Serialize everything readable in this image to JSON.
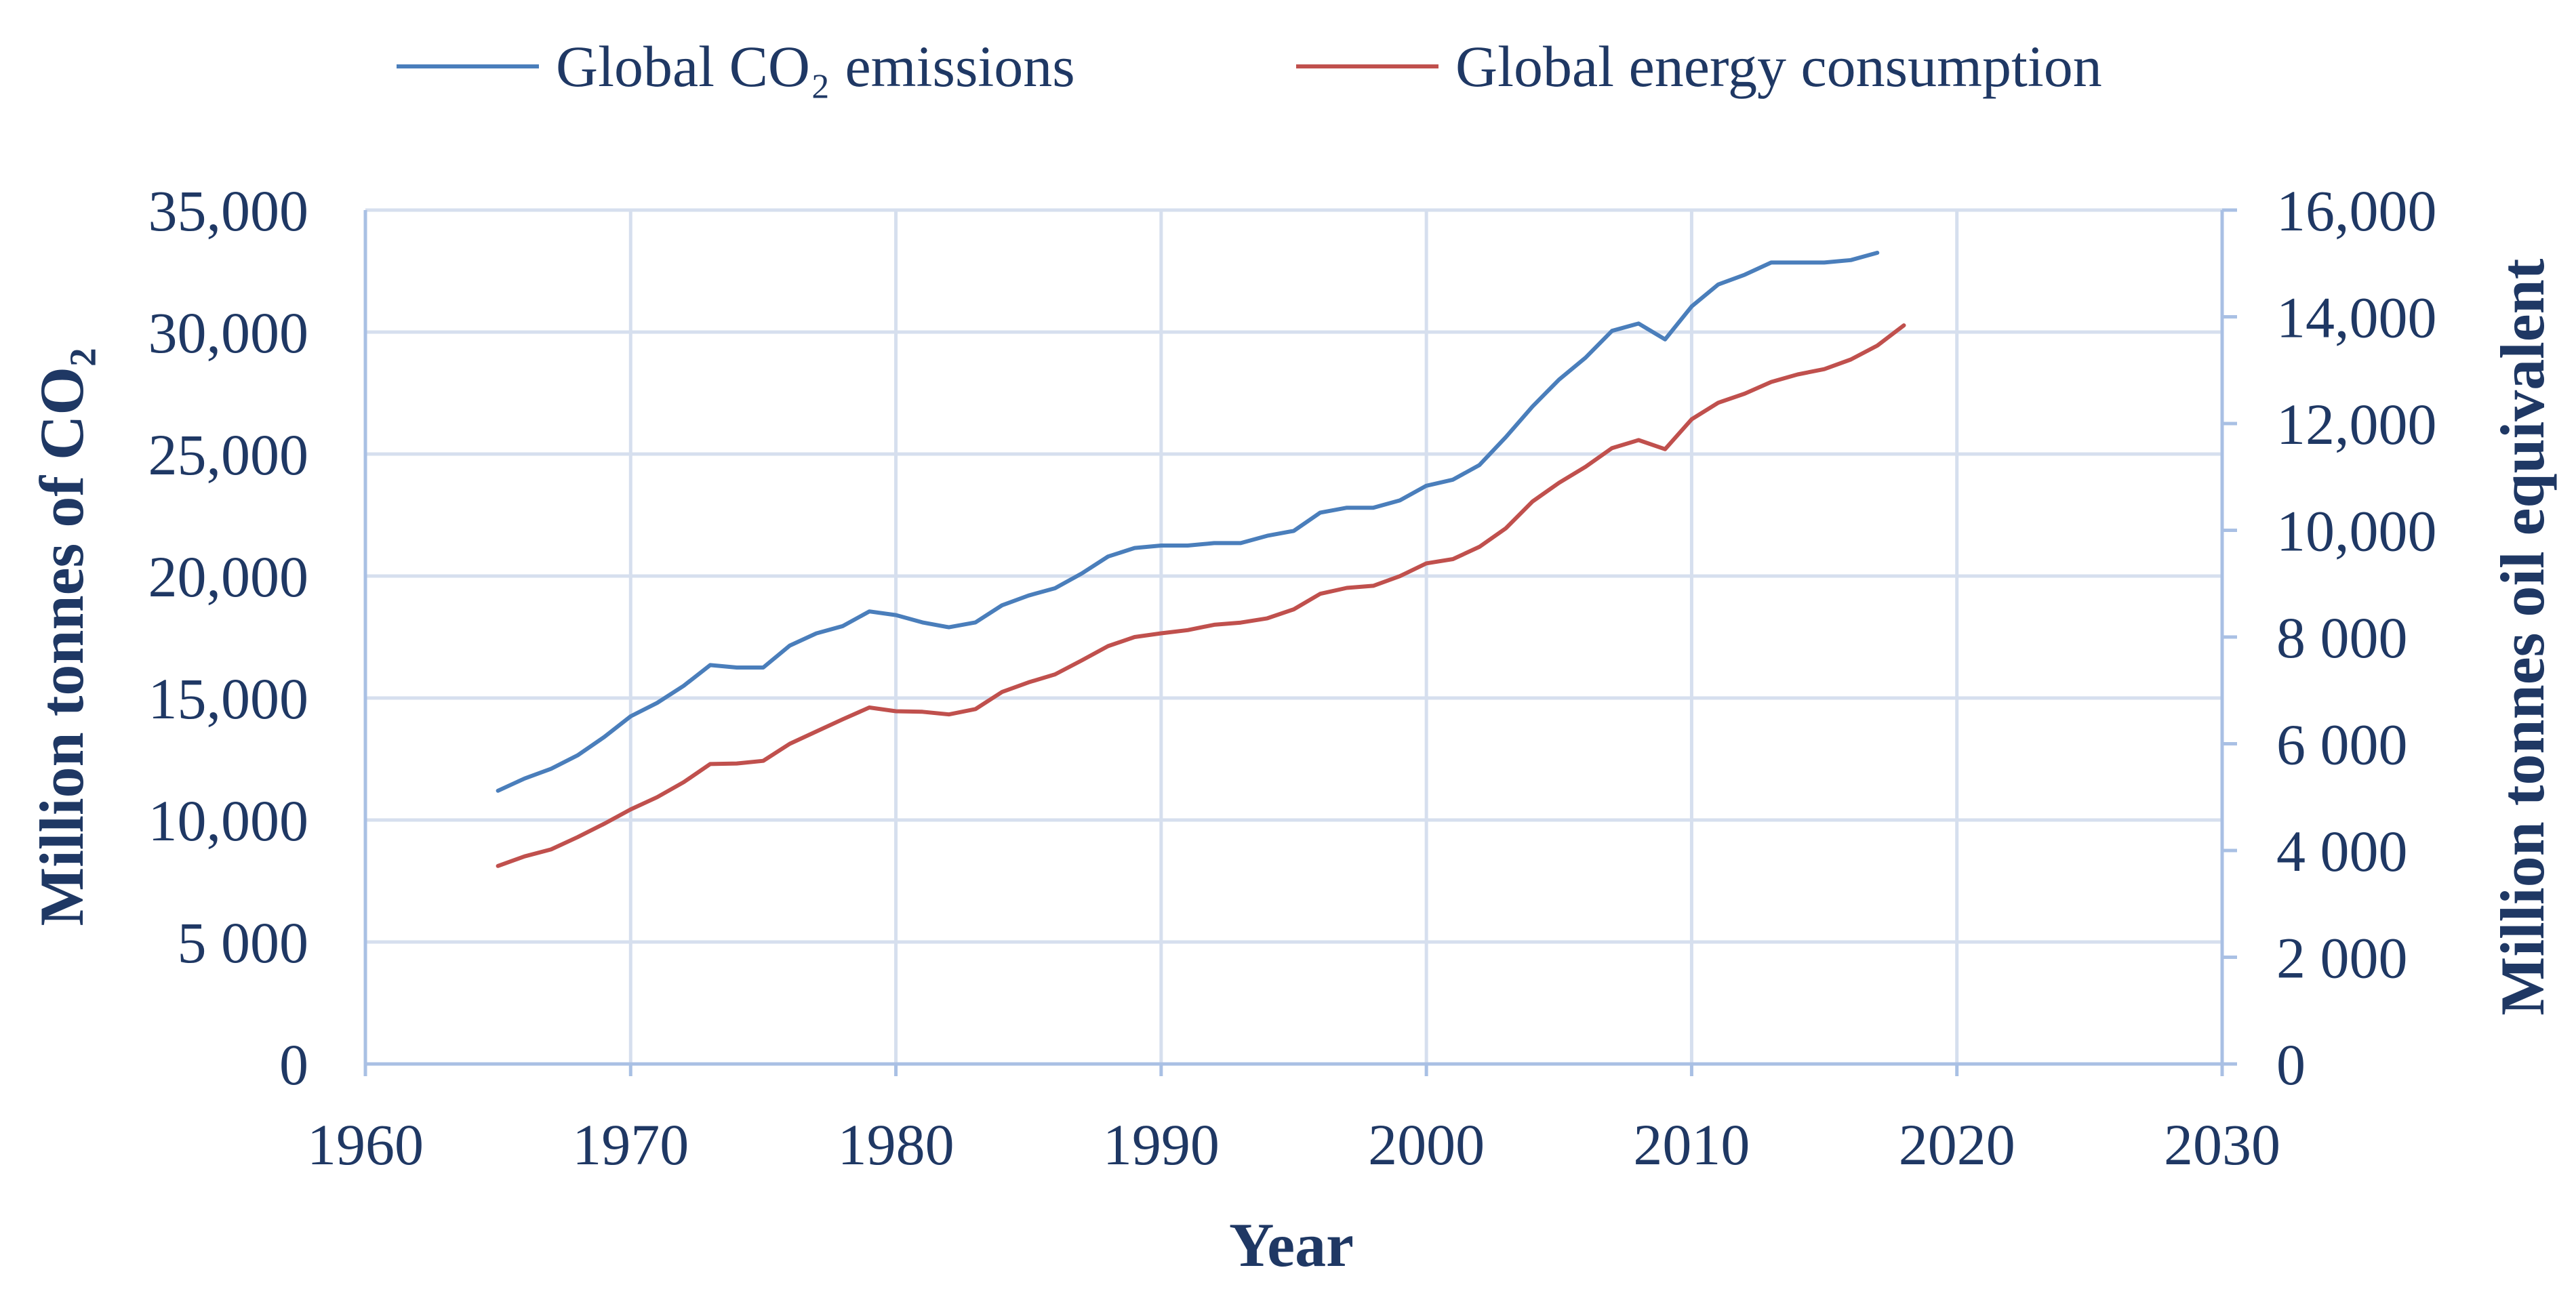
{
  "chart_data": {
    "type": "line",
    "title": "",
    "xlabel": "Year",
    "ylabel_left": "Million tonnes of CO₂",
    "ylabel_right": "Million tonnes oil equivalent",
    "xlim": [
      1960,
      2030
    ],
    "ylim_left": [
      0,
      35000
    ],
    "ylim_right": [
      0,
      16000
    ],
    "grid": true,
    "legend_position": "top",
    "x_ticks": [
      1960,
      1970,
      1980,
      1990,
      2000,
      2010,
      2020,
      2030
    ],
    "x_tick_labels": [
      "1960",
      "1970",
      "1980",
      "1990",
      "2000",
      "2010",
      "2020",
      "2030"
    ],
    "y_left_ticks": [
      0,
      5000,
      10000,
      15000,
      20000,
      25000,
      30000,
      35000
    ],
    "y_left_tick_labels": [
      "0",
      "5 000",
      "10,000",
      "15,000",
      "20,000",
      "25,000",
      "30,000",
      "35,000"
    ],
    "y_right_ticks": [
      0,
      2000,
      4000,
      6000,
      8000,
      10000,
      12000,
      14000,
      16000
    ],
    "y_right_tick_labels": [
      "0",
      "2 000",
      "4 000",
      "6 000",
      "8 000",
      "10,000",
      "12,000",
      "14,000",
      "16,000"
    ],
    "series": [
      {
        "name": "Global CO₂ emissions",
        "axis": "left",
        "color": "#4A7EBB",
        "x": [
          1965,
          1966,
          1967,
          1968,
          1969,
          1970,
          1971,
          1972,
          1973,
          1974,
          1975,
          1976,
          1977,
          1978,
          1979,
          1980,
          1981,
          1982,
          1983,
          1984,
          1985,
          1986,
          1987,
          1988,
          1989,
          1990,
          1991,
          1992,
          1993,
          1994,
          1995,
          1996,
          1997,
          1998,
          1999,
          2000,
          2001,
          2002,
          2003,
          2004,
          2005,
          2006,
          2007,
          2008,
          2009,
          2010,
          2011,
          2012,
          2013,
          2014,
          2015,
          2016,
          2017
        ],
        "values": [
          11200,
          11700,
          12100,
          12650,
          13400,
          14250,
          14800,
          15500,
          16350,
          16250,
          16250,
          17150,
          17650,
          17950,
          18550,
          18400,
          18100,
          17900,
          18100,
          18800,
          19200,
          19500,
          20100,
          20800,
          21150,
          21250,
          21250,
          21350,
          21350,
          21650,
          21850,
          22600,
          22800,
          22800,
          23100,
          23700,
          23950,
          24550,
          25700,
          26950,
          28050,
          28950,
          30050,
          30350,
          29700,
          31050,
          31950,
          32350,
          32850,
          32850,
          32850,
          32950,
          33250
        ]
      },
      {
        "name": "Global energy consumption",
        "axis": "right",
        "color": "#C0504D",
        "x": [
          1965,
          1966,
          1967,
          1968,
          1969,
          1970,
          1971,
          1972,
          1973,
          1974,
          1975,
          1976,
          1977,
          1978,
          1979,
          1980,
          1981,
          1982,
          1983,
          1984,
          1985,
          1986,
          1987,
          1988,
          1989,
          1990,
          1991,
          1992,
          1993,
          1994,
          1995,
          1996,
          1997,
          1998,
          1999,
          2000,
          2001,
          2002,
          2003,
          2004,
          2005,
          2006,
          2007,
          2008,
          2009,
          2010,
          2011,
          2012,
          2013,
          2014,
          2015,
          2016,
          2017,
          2018
        ],
        "values": [
          3710,
          3890,
          4020,
          4250,
          4500,
          4770,
          5000,
          5280,
          5620,
          5630,
          5680,
          6000,
          6230,
          6460,
          6680,
          6610,
          6600,
          6550,
          6650,
          6970,
          7150,
          7300,
          7560,
          7830,
          8000,
          8070,
          8130,
          8230,
          8270,
          8350,
          8520,
          8810,
          8920,
          8960,
          9140,
          9380,
          9460,
          9690,
          10040,
          10540,
          10890,
          11190,
          11540,
          11690,
          11520,
          12080,
          12390,
          12560,
          12780,
          12920,
          13020,
          13200,
          13460,
          13840
        ]
      }
    ]
  }
}
